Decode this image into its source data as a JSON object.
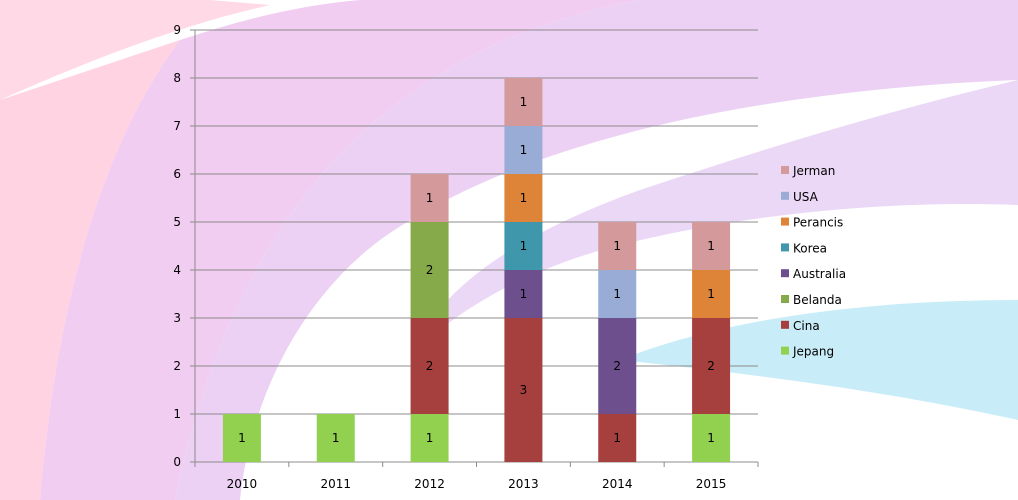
{
  "chart_data": {
    "type": "bar",
    "stacked": true,
    "categories": [
      "2010",
      "2011",
      "2012",
      "2013",
      "2014",
      "2015"
    ],
    "series": [
      {
        "name": "Jepang",
        "color": "#92d050",
        "values": [
          1,
          1,
          1,
          0,
          0,
          1
        ]
      },
      {
        "name": "Cina",
        "color": "#a5403e",
        "values": [
          0,
          0,
          2,
          3,
          1,
          2
        ]
      },
      {
        "name": "Belanda",
        "color": "#86a94a",
        "values": [
          0,
          0,
          2,
          0,
          0,
          0
        ]
      },
      {
        "name": "Australia",
        "color": "#6d4f8e",
        "values": [
          0,
          0,
          0,
          1,
          2,
          0
        ]
      },
      {
        "name": "Korea",
        "color": "#3f97ab",
        "values": [
          0,
          0,
          0,
          1,
          0,
          0
        ]
      },
      {
        "name": "Perancis",
        "color": "#dd8438",
        "values": [
          0,
          0,
          0,
          1,
          0,
          1
        ]
      },
      {
        "name": "USA",
        "color": "#98acd6",
        "values": [
          0,
          0,
          0,
          1,
          1,
          0
        ]
      },
      {
        "name": "Jerman",
        "color": "#d4999a",
        "values": [
          0,
          0,
          1,
          1,
          1,
          1
        ]
      }
    ],
    "legend_order": [
      "Jerman",
      "USA",
      "Perancis",
      "Korea",
      "Australia",
      "Belanda",
      "Cina",
      "Jepang"
    ],
    "ylim": [
      0,
      9
    ],
    "yticks": [
      0,
      1,
      2,
      3,
      4,
      5,
      6,
      7,
      8,
      9
    ],
    "grid": true,
    "legend_position": "right",
    "title": "",
    "xlabel": "",
    "ylabel": ""
  }
}
